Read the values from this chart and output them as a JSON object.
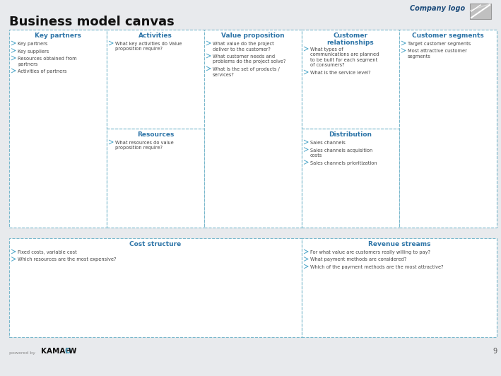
{
  "title": "Business model canvas",
  "bg_color": "#e8eaed",
  "box_bg": "#ffffff",
  "box_edge_color": "#7ab8cc",
  "header_color": "#2e75a8",
  "bullet_color": "#4da6c8",
  "text_color": "#444444",
  "company_logo_color": "#1a4a7a",
  "page_number": "9",
  "boxes": [
    {
      "id": "key_partners",
      "label": "Key partners",
      "col": 0,
      "row": 0,
      "colspan": 1,
      "rowspan": 2,
      "bullet_items": [
        "Key partners",
        "Key suppliers",
        "Resources obtained from\npartners",
        "Activities of partners"
      ]
    },
    {
      "id": "activities",
      "label": "Activities",
      "col": 1,
      "row": 1,
      "colspan": 1,
      "rowspan": 1,
      "bullet_items": [
        "What key activities do Value\nproposition require?"
      ]
    },
    {
      "id": "resources",
      "label": "Resources",
      "col": 1,
      "row": 0,
      "colspan": 1,
      "rowspan": 1,
      "bullet_items": [
        "What resources do value\nproposition require?"
      ]
    },
    {
      "id": "value_proposition",
      "label": "Value proposition",
      "col": 2,
      "row": 0,
      "colspan": 1,
      "rowspan": 2,
      "bullet_items": [
        "What value do the project\ndeliver to the customer?",
        "What customer needs and\nproblems do the project solve?",
        "What is the set of products /\nservices?"
      ]
    },
    {
      "id": "customer_relationships",
      "label": "Customer\nrelationships",
      "col": 3,
      "row": 1,
      "colspan": 1,
      "rowspan": 1,
      "bullet_items": [
        "What types of\ncommunications are planned\nto be built for each segment\nof consumers?",
        "What is the service level?"
      ]
    },
    {
      "id": "distribution",
      "label": "Distribution",
      "col": 3,
      "row": 0,
      "colspan": 1,
      "rowspan": 1,
      "bullet_items": [
        "Sales channels",
        "Sales channels acquisition\ncosts",
        "Sales channels prioritization"
      ]
    },
    {
      "id": "customer_segments",
      "label": "Customer segments",
      "col": 4,
      "row": 0,
      "colspan": 1,
      "rowspan": 2,
      "bullet_items": [
        "Target customer segments",
        "Most attractive customer\nsegments"
      ]
    },
    {
      "id": "cost_structure",
      "label": "Cost structure",
      "col": 0,
      "row": -1,
      "colspan": 3,
      "rowspan": 1,
      "bullet_items": [
        "Fixed costs, variable cost",
        "Which resources are the most expensive?"
      ]
    },
    {
      "id": "revenue_streams",
      "label": "Revenue streams",
      "col": 3,
      "row": -1,
      "colspan": 2,
      "rowspan": 1,
      "bullet_items": [
        "For what value are customers really willing to pay?",
        "What payment methods are considered?",
        "Which of the payment methods are the most attractive?"
      ]
    }
  ]
}
